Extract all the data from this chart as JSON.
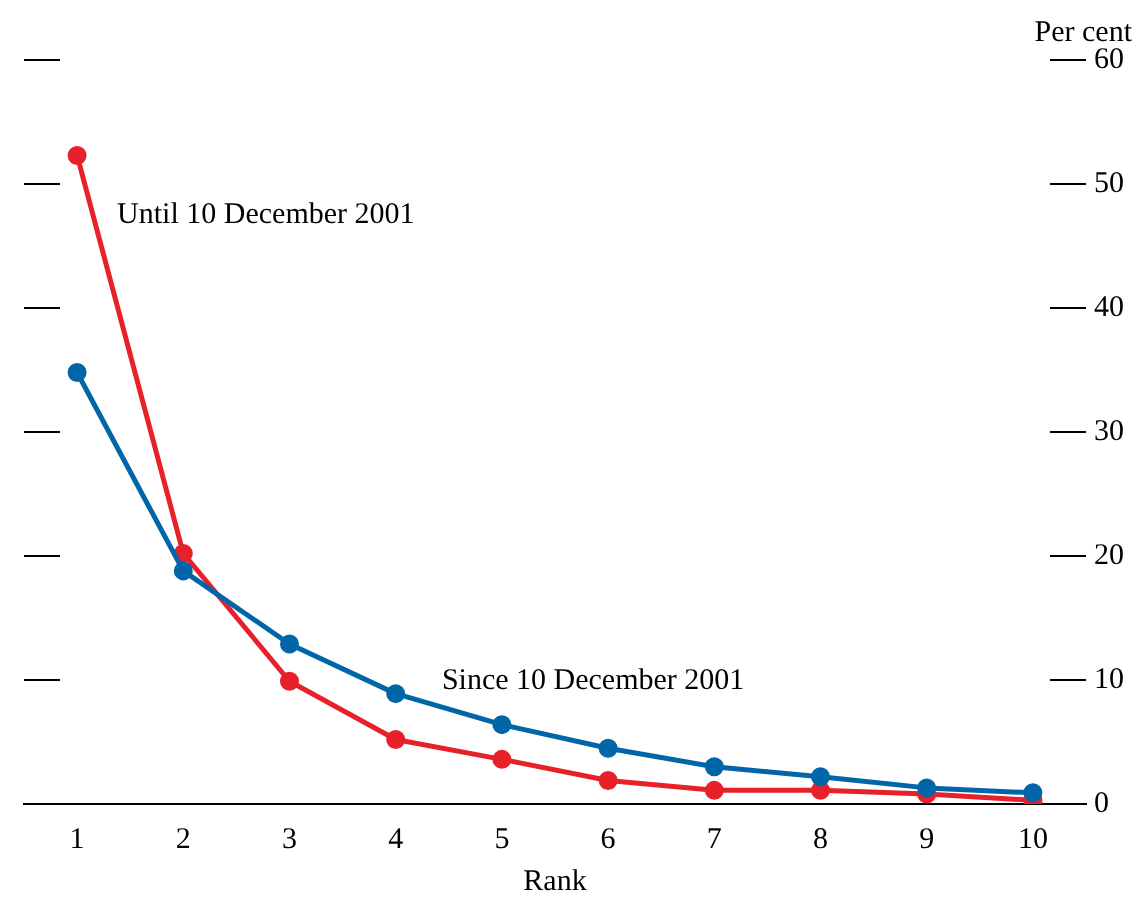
{
  "chart_data": {
    "type": "line",
    "xlabel": "Rank",
    "ylabel": "Per cent",
    "categories": [
      "1",
      "2",
      "3",
      "4",
      "5",
      "6",
      "7",
      "8",
      "9",
      "10"
    ],
    "series": [
      {
        "name": "Until 10 December 2001",
        "color": "#e8202a",
        "values": [
          52.3,
          20.2,
          9.9,
          5.2,
          3.6,
          1.9,
          1.1,
          1.1,
          0.8,
          0.3
        ]
      },
      {
        "name": "Since 10 December 2001",
        "color": "#0066a8",
        "values": [
          34.8,
          18.8,
          12.9,
          8.9,
          6.4,
          4.5,
          3.0,
          2.2,
          1.3,
          0.9
        ]
      }
    ],
    "ylim": [
      0,
      60
    ],
    "yticks": [
      0,
      10,
      20,
      30,
      40,
      50,
      60
    ],
    "grid": false,
    "legend": false,
    "marker": "circle",
    "line_style": "solid"
  }
}
